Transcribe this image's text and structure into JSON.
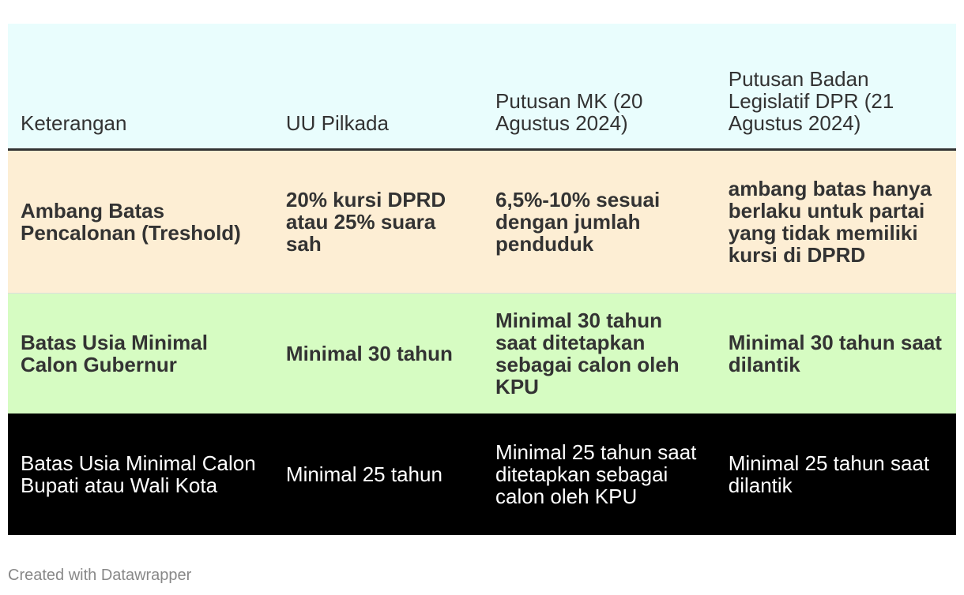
{
  "chart_data": {
    "type": "table",
    "columns": [
      "Keterangan",
      "UU Pilkada",
      "Putusan MK (20 Agustus 2024)",
      "Putusan Badan Legislatif DPR (21 Agustus 2024)"
    ],
    "rows": [
      {
        "cells": [
          "Ambang Batas Pencalonan (Treshold)",
          "20% kursi DPRD atau 25% suara sah",
          "6,5%-10% sesuai dengan jumlah penduduk",
          "ambang batas hanya berlaku untuk partai yang tidak memiliki kursi di DPRD"
        ],
        "background": "#fdeed4",
        "text_color": "#333333",
        "bold": true
      },
      {
        "cells": [
          "Batas Usia Minimal Calon Gubernur",
          "Minimal 30 tahun",
          "Minimal 30 tahun saat ditetapkan sebagai calon oleh KPU",
          "Minimal 30 tahun saat dilantik"
        ],
        "background": "#d6fcc2",
        "text_color": "#333333",
        "bold": true
      },
      {
        "cells": [
          "Batas Usia Minimal Calon Bupati atau Wali Kota",
          "Minimal 25 tahun",
          "Minimal 25 tahun saat ditetapkan sebagai calon oleh KPU",
          "Minimal 25 tahun saat dilantik"
        ],
        "background": "#000000",
        "text_color": "#ffffff",
        "bold": false
      }
    ],
    "header_background": "#e9fdfd"
  },
  "footer": "Created with Datawrapper"
}
